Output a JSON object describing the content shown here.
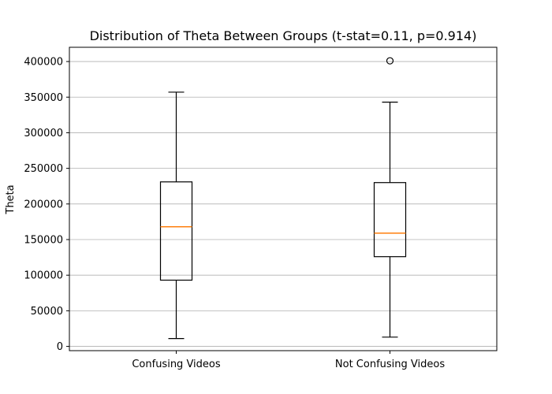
{
  "chart_data": {
    "type": "box",
    "title": "Distribution of Theta Between Groups (t-stat=0.11, p=0.914)",
    "xlabel": "",
    "ylabel": "Theta",
    "categories": [
      "Confusing Videos",
      "Not Confusing Videos"
    ],
    "ylim": [
      -6000,
      420000
    ],
    "yticks": [
      0,
      50000,
      100000,
      150000,
      200000,
      250000,
      300000,
      350000,
      400000
    ],
    "grid": "y",
    "series": [
      {
        "category": "Confusing Videos",
        "whisker_low": 11000,
        "q1": 93000,
        "median": 168000,
        "q3": 231000,
        "whisker_high": 357000,
        "outliers": []
      },
      {
        "category": "Not Confusing Videos",
        "whisker_low": 13000,
        "q1": 126000,
        "median": 159000,
        "q3": 230000,
        "whisker_high": 343000,
        "outliers": [
          401000
        ]
      }
    ],
    "colors": {
      "box": "#000000",
      "median": "#ff7f0e",
      "grid": "#b0b0b0"
    }
  }
}
